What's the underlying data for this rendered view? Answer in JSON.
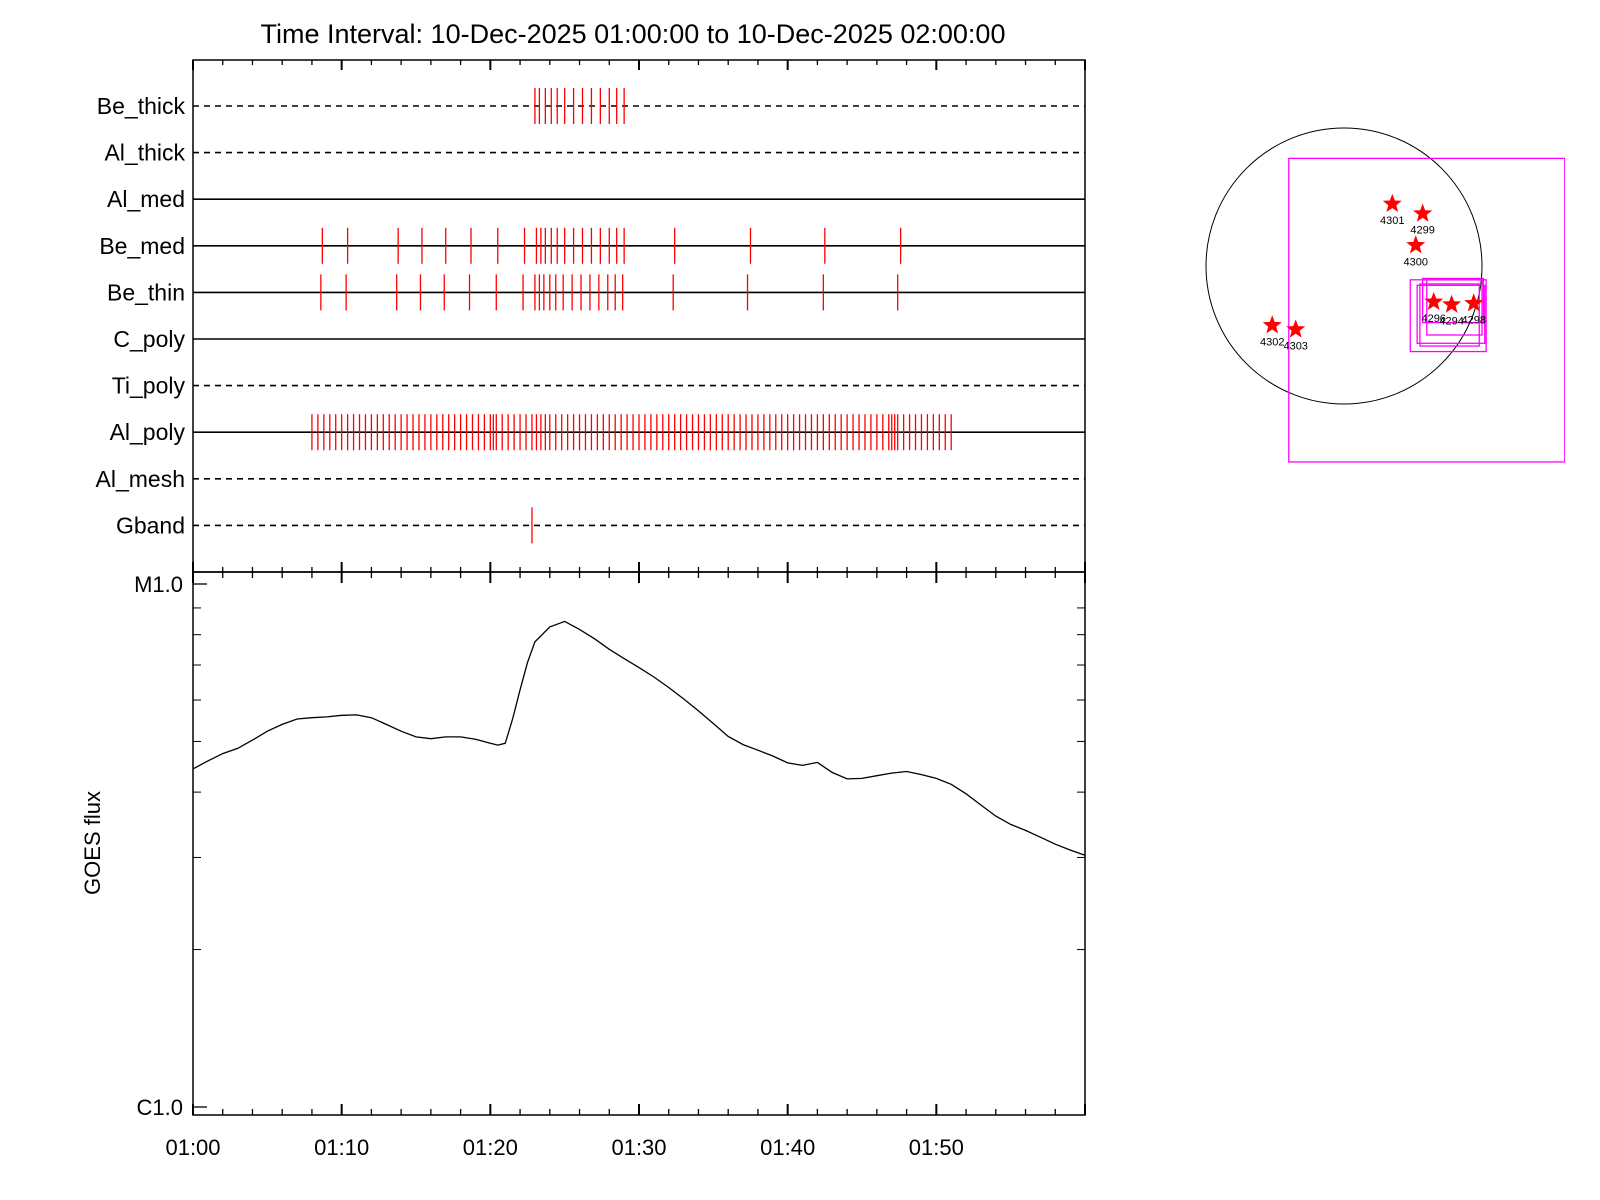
{
  "chart_data": [
    {
      "type": "timeline",
      "title": "Time Interval: 10-Dec-2025 01:00:00 to 10-Dec-2025 02:00:00",
      "x_unit": "minutes after 01:00",
      "xlim": [
        0,
        60
      ],
      "rows": [
        {
          "label": "Be_thick",
          "style": "dashed",
          "events": [
            23.0,
            23.3,
            23.7,
            24.1,
            24.5,
            25.0,
            25.6,
            26.2,
            26.8,
            27.4,
            28.0,
            28.5,
            29.0
          ]
        },
        {
          "label": "Al_thick",
          "style": "dashed",
          "events": []
        },
        {
          "label": "Al_med",
          "style": "solid",
          "events": []
        },
        {
          "label": "Be_med",
          "style": "solid",
          "events": [
            8.7,
            10.4,
            13.8,
            15.4,
            17.0,
            18.7,
            20.5,
            22.3,
            23.1,
            23.4,
            23.7,
            24.1,
            24.5,
            25.0,
            25.6,
            26.2,
            26.8,
            27.4,
            28.0,
            28.5,
            29.0,
            32.4,
            37.5,
            42.5,
            47.6
          ]
        },
        {
          "label": "Be_thin",
          "style": "solid",
          "events": [
            8.6,
            10.3,
            13.7,
            15.3,
            16.9,
            18.6,
            20.4,
            22.2,
            23.0,
            23.3,
            23.6,
            24.0,
            24.4,
            24.9,
            25.5,
            26.1,
            26.7,
            27.3,
            27.9,
            28.4,
            28.9,
            32.3,
            37.3,
            42.4,
            47.4
          ]
        },
        {
          "label": "C_poly",
          "style": "solid",
          "events": []
        },
        {
          "label": "Ti_poly",
          "style": "dashed",
          "events": []
        },
        {
          "label": "Al_poly",
          "style": "solid",
          "events": [
            8.0,
            8.4,
            8.8,
            9.2,
            9.6,
            10.0,
            10.4,
            10.8,
            11.2,
            11.6,
            12.0,
            12.4,
            12.8,
            13.2,
            13.6,
            14.0,
            14.4,
            14.8,
            15.2,
            15.6,
            16.0,
            16.4,
            16.8,
            17.2,
            17.6,
            18.0,
            18.4,
            18.8,
            19.2,
            19.6,
            20.0,
            20.2,
            20.4,
            20.8,
            21.2,
            21.6,
            22.0,
            22.4,
            22.8,
            23.1,
            23.4,
            23.7,
            24.0,
            24.4,
            24.8,
            25.2,
            25.6,
            26.0,
            26.4,
            26.8,
            27.2,
            27.6,
            28.0,
            28.4,
            28.8,
            29.2,
            29.6,
            30.0,
            30.4,
            30.8,
            31.2,
            31.6,
            32.0,
            32.4,
            32.8,
            33.2,
            33.6,
            34.0,
            34.4,
            34.8,
            35.2,
            35.6,
            36.0,
            36.4,
            36.8,
            37.2,
            37.6,
            38.0,
            38.4,
            38.8,
            39.2,
            39.6,
            40.0,
            40.4,
            40.8,
            41.2,
            41.6,
            42.0,
            42.4,
            42.8,
            43.2,
            43.6,
            44.0,
            44.4,
            44.8,
            45.2,
            45.6,
            46.0,
            46.4,
            46.8,
            47.0,
            47.2,
            47.4,
            47.8,
            48.2,
            48.6,
            49.0,
            49.4,
            49.8,
            50.2,
            50.6,
            51.0
          ]
        },
        {
          "label": "Al_mesh",
          "style": "dashed",
          "events": []
        },
        {
          "label": "Gband",
          "style": "dashed",
          "events": [
            22.8
          ]
        }
      ]
    },
    {
      "type": "line",
      "ylabel": "GOES flux",
      "x_unit": "minutes after 01:00",
      "xlim": [
        0,
        60
      ],
      "y_scale": "log",
      "ylim": [
        1e-06,
        1e-05
      ],
      "ytick_labels": [
        {
          "value": 1e-05,
          "label": "M1.0"
        },
        {
          "value": 1e-06,
          "label": "C1.0"
        }
      ],
      "xtick_labels": [
        {
          "value": 0,
          "label": "01:00"
        },
        {
          "value": 10,
          "label": "01:10"
        },
        {
          "value": 20,
          "label": "01:20"
        },
        {
          "value": 30,
          "label": "01:30"
        },
        {
          "value": 40,
          "label": "01:40"
        },
        {
          "value": 50,
          "label": "01:50"
        }
      ],
      "series": [
        {
          "color": "#000000",
          "x": [
            0,
            1,
            2,
            3,
            4,
            5,
            6,
            7,
            8,
            9,
            10,
            11,
            12,
            13,
            14,
            15,
            16,
            17,
            18,
            19,
            20,
            20.5,
            21,
            21.5,
            22,
            22.5,
            23,
            24,
            25,
            26,
            27,
            28,
            29,
            30,
            31,
            32,
            33,
            34,
            35,
            36,
            37,
            38,
            39,
            40,
            41,
            42,
            43,
            44,
            45,
            46,
            47,
            48,
            49,
            50,
            51,
            52,
            53,
            54,
            55,
            56,
            57,
            58,
            59,
            60
          ],
          "y": [
            4.43e-06,
            4.59e-06,
            4.74e-06,
            4.85e-06,
            5.03e-06,
            5.23e-06,
            5.39e-06,
            5.52e-06,
            5.55e-06,
            5.57e-06,
            5.61e-06,
            5.62e-06,
            5.55e-06,
            5.39e-06,
            5.23e-06,
            5.1e-06,
            5.06e-06,
            5.1e-06,
            5.1e-06,
            5.05e-06,
            4.96e-06,
            4.92e-06,
            4.96e-06,
            5.52e-06,
            6.28e-06,
            7.08e-06,
            7.75e-06,
            8.28e-06,
            8.48e-06,
            8.19e-06,
            7.86e-06,
            7.5e-06,
            7.2e-06,
            6.92e-06,
            6.64e-06,
            6.34e-06,
            6.03e-06,
            5.72e-06,
            5.41e-06,
            5.11e-06,
            4.93e-06,
            4.81e-06,
            4.69e-06,
            4.55e-06,
            4.5e-06,
            4.56e-06,
            4.36e-06,
            4.24e-06,
            4.25e-06,
            4.3e-06,
            4.35e-06,
            4.38e-06,
            4.32e-06,
            4.25e-06,
            4.14e-06,
            3.97e-06,
            3.78e-06,
            3.6e-06,
            3.47e-06,
            3.38e-06,
            3.28e-06,
            3.18e-06,
            3.1e-06,
            3.03e-06
          ]
        }
      ]
    },
    {
      "type": "scatter",
      "subtype": "solar_disk_map",
      "disk": {
        "center": [
          0,
          0
        ],
        "radius_arcsec": 1000
      },
      "x_unit": "arcsec",
      "y_unit": "arcsec",
      "marker": "star",
      "marker_color": "#ff0000",
      "points": [
        {
          "label": "4301",
          "x": 350,
          "y": 450
        },
        {
          "label": "4299",
          "x": 570,
          "y": 380
        },
        {
          "label": "4300",
          "x": 520,
          "y": 150
        },
        {
          "label": "4296",
          "x": 650,
          "y": -260
        },
        {
          "label": "4294",
          "x": 780,
          "y": -280
        },
        {
          "label": "4298",
          "x": 940,
          "y": -270
        },
        {
          "label": "4302",
          "x": -520,
          "y": -430
        },
        {
          "label": "4303",
          "x": -350,
          "y": -460
        }
      ],
      "boxes": [
        {
          "x": [
            -400,
            1600
          ],
          "y": [
            -1420,
            780
          ],
          "color": "#ff00ff"
        },
        {
          "x": [
            570,
            1010
          ],
          "y": [
            -410,
            -90
          ],
          "color": "#ff00ff"
        },
        {
          "x": [
            600,
            1000
          ],
          "y": [
            -500,
            -100
          ],
          "color": "#ff00ff"
        },
        {
          "x": [
            530,
            1020
          ],
          "y": [
            -560,
            -140
          ],
          "color": "#ff00ff"
        },
        {
          "x": [
            480,
            1030
          ],
          "y": [
            -620,
            -100
          ],
          "color": "#ff00ff"
        },
        {
          "x": [
            550,
            980
          ],
          "y": [
            -580,
            -130
          ],
          "color": "#ff00ff"
        }
      ]
    }
  ]
}
